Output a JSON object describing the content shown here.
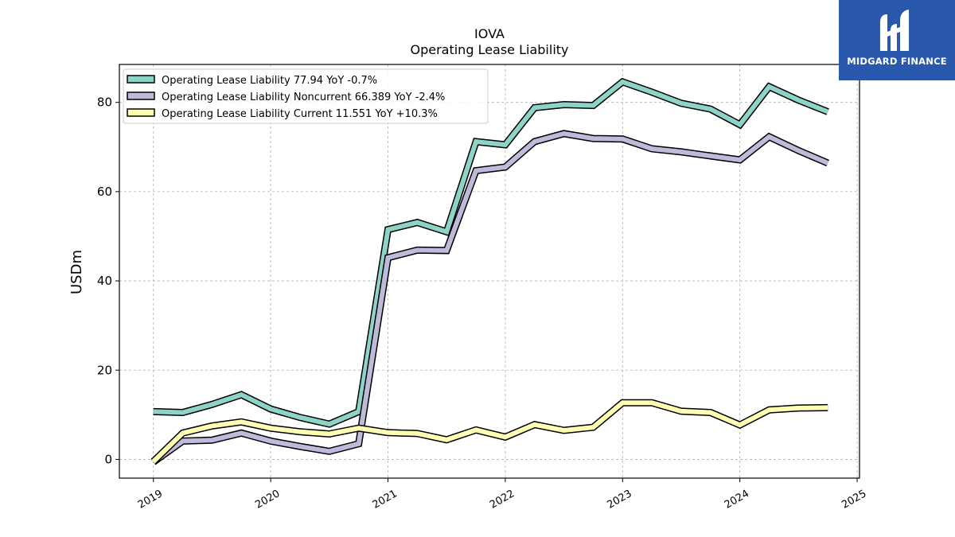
{
  "brand": {
    "name": "MIDGARD FINANCE",
    "color": "#2a58ad"
  },
  "chart_data": {
    "type": "line",
    "title": "IOVA",
    "subtitle": "Operating Lease Liability",
    "ylabel": "USDm",
    "xlabel": "",
    "xlim": [
      2018.71,
      2025.02
    ],
    "ylim": [
      -4.2,
      88.5
    ],
    "yticks": [
      0,
      20,
      40,
      60,
      80
    ],
    "xticks": [
      "2019",
      "2020",
      "2021",
      "2022",
      "2023",
      "2024",
      "2025"
    ],
    "grid": true,
    "legend_position": "top-left",
    "x": [
      2019.0,
      2019.25,
      2019.5,
      2019.75,
      2020.0,
      2020.25,
      2020.5,
      2020.75,
      2021.0,
      2021.25,
      2021.5,
      2021.75,
      2022.0,
      2022.25,
      2022.5,
      2022.75,
      2023.0,
      2023.25,
      2023.5,
      2023.75,
      2024.0,
      2024.25,
      2024.5,
      2024.75
    ],
    "series": [
      {
        "name": "Operating Lease Liability",
        "legend": "Operating Lease Liability  77.94 YoY -0.7%",
        "color": "#8dd3c7",
        "values": [
          10.7,
          10.5,
          12.3,
          14.5,
          11.3,
          9.4,
          7.9,
          10.7,
          51.5,
          53.1,
          51.0,
          71.2,
          70.5,
          78.8,
          79.5,
          79.3,
          84.6,
          82.3,
          79.8,
          78.5,
          75.0,
          83.5,
          80.5,
          77.9
        ]
      },
      {
        "name": "Operating Lease Liability Noncurrent",
        "legend": "Operating Lease Liability Noncurrent  66.389 YoY -2.4%",
        "color": "#bebada",
        "values": [
          -0.6,
          4.1,
          4.3,
          5.9,
          4.1,
          2.9,
          1.8,
          3.5,
          45.2,
          46.9,
          46.8,
          64.7,
          65.5,
          71.2,
          73.0,
          71.9,
          71.8,
          69.6,
          68.9,
          68.0,
          67.1,
          72.3,
          69.2,
          66.4
        ]
      },
      {
        "name": "Operating Lease Liability Current",
        "legend": "Operating Lease Liability Current  11.551 YoY +10.3%",
        "color": "#ffffb3",
        "values": [
          -0.5,
          5.9,
          7.5,
          8.4,
          7.0,
          6.2,
          5.7,
          7.0,
          6.0,
          5.8,
          4.4,
          6.6,
          5.0,
          7.8,
          6.5,
          7.2,
          12.7,
          12.7,
          10.8,
          10.5,
          7.7,
          11.1,
          11.5,
          11.6
        ]
      }
    ]
  }
}
